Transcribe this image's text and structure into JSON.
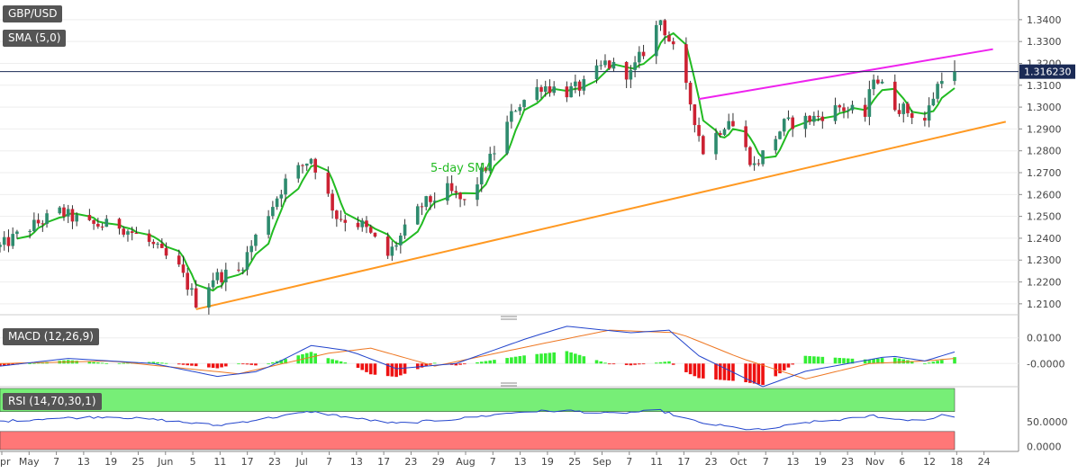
{
  "labels": {
    "symbol": "GBP/USD",
    "sma": "SMA (5,0)",
    "macd": "MACD (12,26,9)",
    "rsi": "RSI (14,70,30,1)",
    "sma_annotation": "5-day SMA"
  },
  "price_axis": {
    "ticks": [
      "1.3400",
      "1.3300",
      "1.3200",
      "1.3100",
      "1.3000",
      "1.2900",
      "1.2800",
      "1.2700",
      "1.2600",
      "1.2500",
      "1.2400",
      "1.2300",
      "1.2200",
      "1.2100"
    ],
    "current": "1.316230"
  },
  "macd_axis": {
    "ticks": [
      "0.0100",
      "-0.0000"
    ]
  },
  "rsi_axis": {
    "ticks": [
      "50.0000",
      "0.0000"
    ]
  },
  "date_axis": {
    "ticks": [
      "Apr",
      "May",
      "7",
      "13",
      "19",
      "25",
      "Jun",
      "5",
      "11",
      "17",
      "23",
      "Jul",
      "7",
      "13",
      "17",
      "23",
      "29",
      "Aug",
      "7",
      "13",
      "19",
      "25",
      "Sep",
      "7",
      "11",
      "17",
      "23",
      "Oct",
      "7",
      "13",
      "19",
      "23",
      "Nov",
      "6",
      "12",
      "18",
      "24"
    ]
  },
  "colors": {
    "up": "#2e8b6e",
    "down": "#cc2233",
    "sma": "#22bb22",
    "resistance": "#ee22ee",
    "support": "#ff9922",
    "macd": "#2244cc",
    "signal": "#ee7722",
    "rsi": "#2244cc",
    "rsi_upper_zone": "#77ee77",
    "rsi_lower_zone": "#ff7777"
  },
  "chart_data": [
    {
      "type": "candlestick",
      "title": "GBP/USD",
      "ylim": [
        1.205,
        1.349
      ],
      "x_start": "2020-03-30",
      "x_end": "2020-11-24",
      "last_price": 1.31623,
      "close_path": [
        [
          "2020-03-30",
          1.236
        ],
        [
          "2020-04-06",
          1.245
        ],
        [
          "2020-04-13",
          1.252
        ],
        [
          "2020-04-20",
          1.246
        ],
        [
          "2020-04-27",
          1.246
        ],
        [
          "2020-05-04",
          1.238
        ],
        [
          "2020-05-11",
          1.226
        ],
        [
          "2020-05-15",
          1.211
        ],
        [
          "2020-05-19",
          1.222
        ],
        [
          "2020-05-25",
          1.225
        ],
        [
          "2020-06-01",
          1.252
        ],
        [
          "2020-06-05",
          1.266
        ],
        [
          "2020-06-11",
          1.277
        ],
        [
          "2020-06-17",
          1.25
        ],
        [
          "2020-06-23",
          1.246
        ],
        [
          "2020-06-29",
          1.232
        ],
        [
          "2020-07-07",
          1.255
        ],
        [
          "2020-07-13",
          1.262
        ],
        [
          "2020-07-17",
          1.256
        ],
        [
          "2020-07-23",
          1.276
        ],
        [
          "2020-07-29",
          1.3
        ],
        [
          "2020-08-04",
          1.31
        ],
        [
          "2020-08-10",
          1.307
        ],
        [
          "2020-08-14",
          1.31
        ],
        [
          "2020-08-19",
          1.32
        ],
        [
          "2020-08-25",
          1.315
        ],
        [
          "2020-09-01",
          1.34
        ],
        [
          "2020-09-04",
          1.326
        ],
        [
          "2020-09-08",
          1.302
        ],
        [
          "2020-09-11",
          1.28
        ],
        [
          "2020-09-17",
          1.295
        ],
        [
          "2020-09-23",
          1.273
        ],
        [
          "2020-09-30",
          1.292
        ],
        [
          "2020-10-07",
          1.295
        ],
        [
          "2020-10-13",
          1.3
        ],
        [
          "2020-10-19",
          1.296
        ],
        [
          "2020-10-21",
          1.315
        ],
        [
          "2020-10-26",
          1.301
        ],
        [
          "2020-11-02",
          1.294
        ],
        [
          "2020-11-04",
          1.305
        ],
        [
          "2020-11-06",
          1.315
        ],
        [
          "2020-11-09",
          1.3162
        ]
      ],
      "lines": [
        {
          "name": "5-day SMA",
          "role": "sma"
        },
        {
          "role": "resistance",
          "from": [
            "2020-09-10",
            1.3037
          ],
          "to": [
            "2020-11-18",
            1.3265
          ]
        },
        {
          "role": "support",
          "from": [
            "2020-05-15",
            1.2075
          ],
          "to": [
            "2020-11-21",
            1.2933
          ]
        }
      ]
    },
    {
      "type": "bar",
      "title": "MACD (12,26,9)",
      "ylim": [
        -0.009,
        0.019
      ],
      "macd_path": [
        [
          "2020-03-30",
          -0.001
        ],
        [
          "2020-04-15",
          0.002
        ],
        [
          "2020-05-05",
          0.0
        ],
        [
          "2020-05-20",
          -0.005
        ],
        [
          "2020-05-30",
          -0.003
        ],
        [
          "2020-06-11",
          0.007
        ],
        [
          "2020-06-20",
          0.005
        ],
        [
          "2020-07-01",
          -0.002
        ],
        [
          "2020-07-15",
          0.0
        ],
        [
          "2020-08-01",
          0.01
        ],
        [
          "2020-08-10",
          0.0145
        ],
        [
          "2020-08-25",
          0.012
        ],
        [
          "2020-09-03",
          0.013
        ],
        [
          "2020-09-10",
          0.003
        ],
        [
          "2020-09-25",
          -0.009
        ],
        [
          "2020-10-05",
          -0.003
        ],
        [
          "2020-10-15",
          0.0
        ],
        [
          "2020-10-25",
          0.003
        ],
        [
          "2020-11-02",
          0.001
        ],
        [
          "2020-11-09",
          0.0045
        ]
      ],
      "signal_path": [
        [
          "2020-03-30",
          0.0
        ],
        [
          "2020-04-25",
          0.001
        ],
        [
          "2020-05-25",
          -0.004
        ],
        [
          "2020-06-15",
          0.004
        ],
        [
          "2020-06-25",
          0.006
        ],
        [
          "2020-07-10",
          -0.001
        ],
        [
          "2020-08-05",
          0.008
        ],
        [
          "2020-08-20",
          0.013
        ],
        [
          "2020-09-05",
          0.012
        ],
        [
          "2020-09-20",
          0.002
        ],
        [
          "2020-10-05",
          -0.006
        ],
        [
          "2020-10-20",
          0.0
        ],
        [
          "2020-11-02",
          0.001
        ],
        [
          "2020-11-09",
          0.002
        ]
      ]
    },
    {
      "type": "line",
      "title": "RSI (14,70,30,1)",
      "ylim": [
        -10,
        120
      ],
      "zones": {
        "upper": 70,
        "lower": 30
      },
      "values": [
        [
          "2020-03-30",
          50
        ],
        [
          "2020-04-10",
          56
        ],
        [
          "2020-04-25",
          60
        ],
        [
          "2020-05-08",
          52
        ],
        [
          "2020-05-20",
          42
        ],
        [
          "2020-06-05",
          62
        ],
        [
          "2020-06-11",
          70
        ],
        [
          "2020-06-20",
          58
        ],
        [
          "2020-07-01",
          46
        ],
        [
          "2020-07-15",
          55
        ],
        [
          "2020-07-31",
          70
        ],
        [
          "2020-08-10",
          72
        ],
        [
          "2020-08-20",
          66
        ],
        [
          "2020-09-01",
          72
        ],
        [
          "2020-09-10",
          48
        ],
        [
          "2020-09-20",
          36
        ],
        [
          "2020-09-25",
          33
        ],
        [
          "2020-10-05",
          48
        ],
        [
          "2020-10-15",
          55
        ],
        [
          "2020-10-21",
          62
        ],
        [
          "2020-10-26",
          54
        ],
        [
          "2020-11-02",
          53
        ],
        [
          "2020-11-06",
          62
        ],
        [
          "2020-11-09",
          61
        ]
      ]
    }
  ]
}
